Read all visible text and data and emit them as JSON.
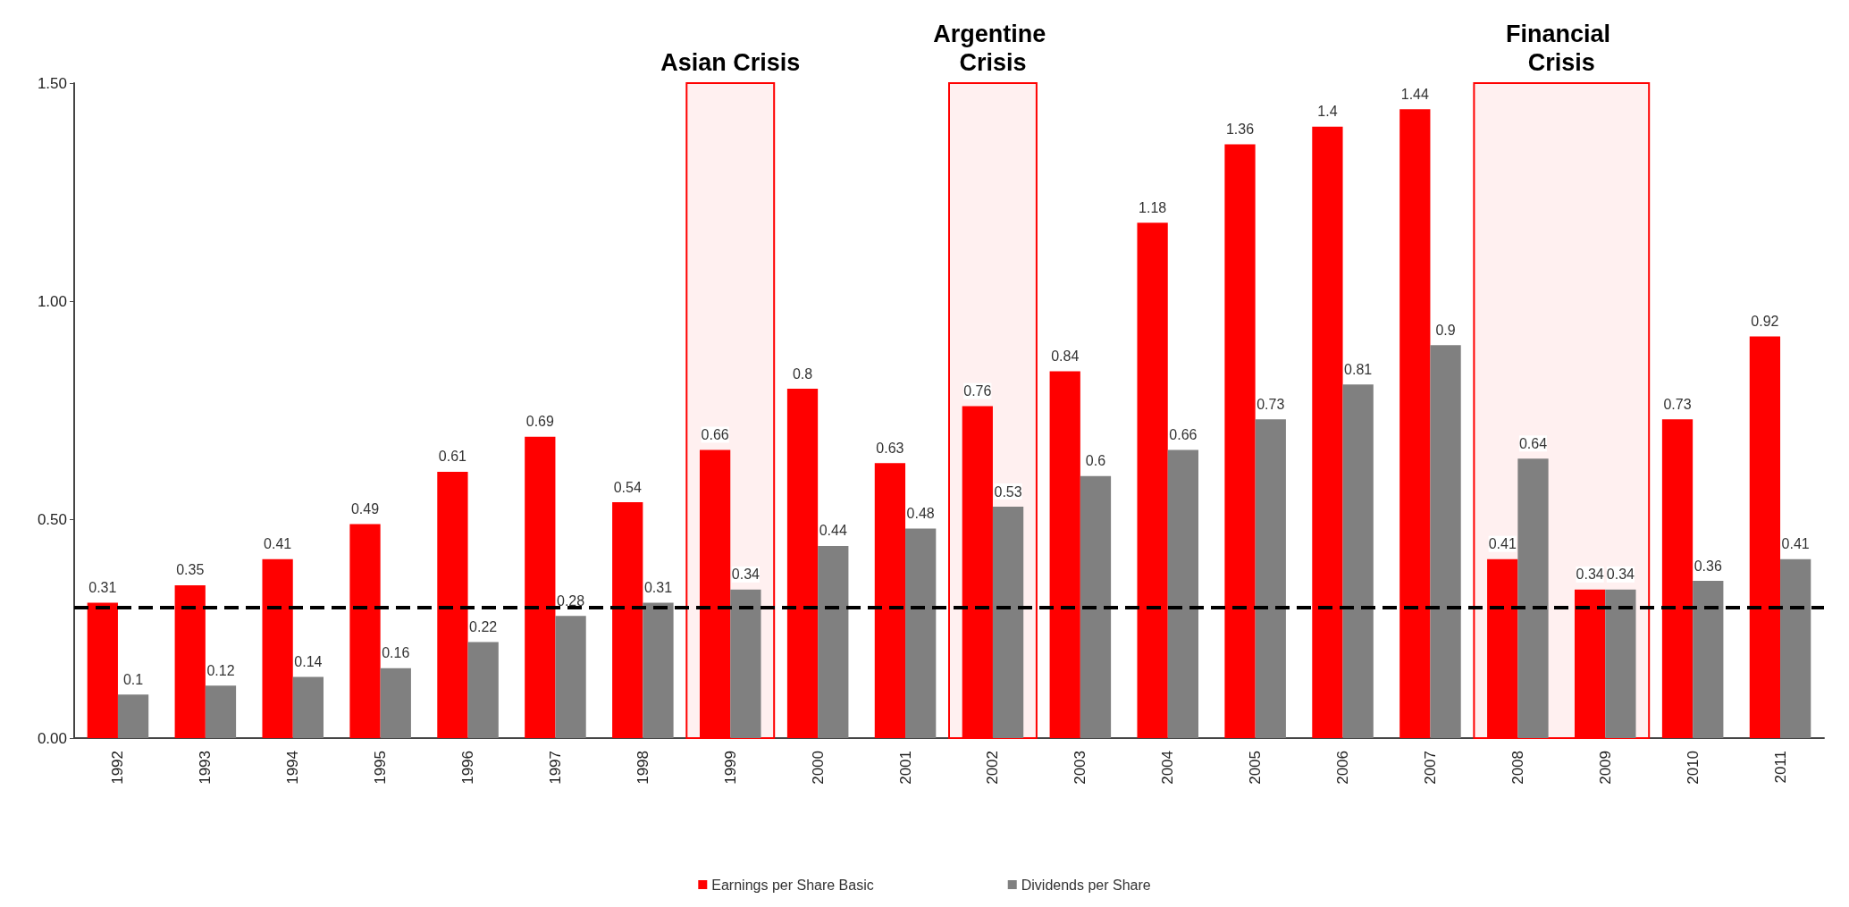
{
  "chart_data": {
    "type": "bar",
    "categories": [
      "1992",
      "1993",
      "1994",
      "1995",
      "1996",
      "1997",
      "1998",
      "1999",
      "2000",
      "2001",
      "2002",
      "2003",
      "2004",
      "2005",
      "2006",
      "2007",
      "2008",
      "2009",
      "2010",
      "2011"
    ],
    "series": [
      {
        "name": "Earnings per Share Basic",
        "color": "#ff0000",
        "values": [
          0.31,
          0.35,
          0.41,
          0.49,
          0.61,
          0.69,
          0.54,
          0.66,
          0.8,
          0.63,
          0.76,
          0.84,
          1.18,
          1.36,
          1.4,
          1.44,
          0.41,
          0.34,
          0.73,
          0.92
        ]
      },
      {
        "name": "Dividends per Share",
        "color": "#808080",
        "values": [
          0.1,
          0.12,
          0.14,
          0.16,
          0.22,
          0.28,
          0.31,
          0.34,
          0.44,
          0.48,
          0.53,
          0.6,
          0.66,
          0.73,
          0.81,
          0.9,
          0.64,
          0.34,
          0.36,
          0.41
        ]
      }
    ],
    "ylim": [
      0,
      1.5
    ],
    "yticks": [
      {
        "value": 0,
        "label": "0.00"
      },
      {
        "value": 0.5,
        "label": "0.50"
      },
      {
        "value": 1,
        "label": "1.00"
      },
      {
        "value": 1.5,
        "label": "1.50"
      }
    ],
    "data_labels": true,
    "grid": false,
    "legend": "bottom",
    "ref_lines": [
      {
        "axis": "y",
        "value": 0.3,
        "color": "#000000",
        "line_style": "dashed"
      }
    ],
    "bands": [
      {
        "axis": "x",
        "from": "1999",
        "to": "1999",
        "label": "Asian Crisis",
        "color": "#ff0000"
      },
      {
        "axis": "x",
        "from": "2002",
        "to": "2002",
        "label": "Argentine Crisis",
        "color": "#ff0000"
      },
      {
        "axis": "x",
        "from": "2008",
        "to": "2009",
        "label": "Financial Crisis",
        "color": "#ff0000"
      }
    ]
  }
}
